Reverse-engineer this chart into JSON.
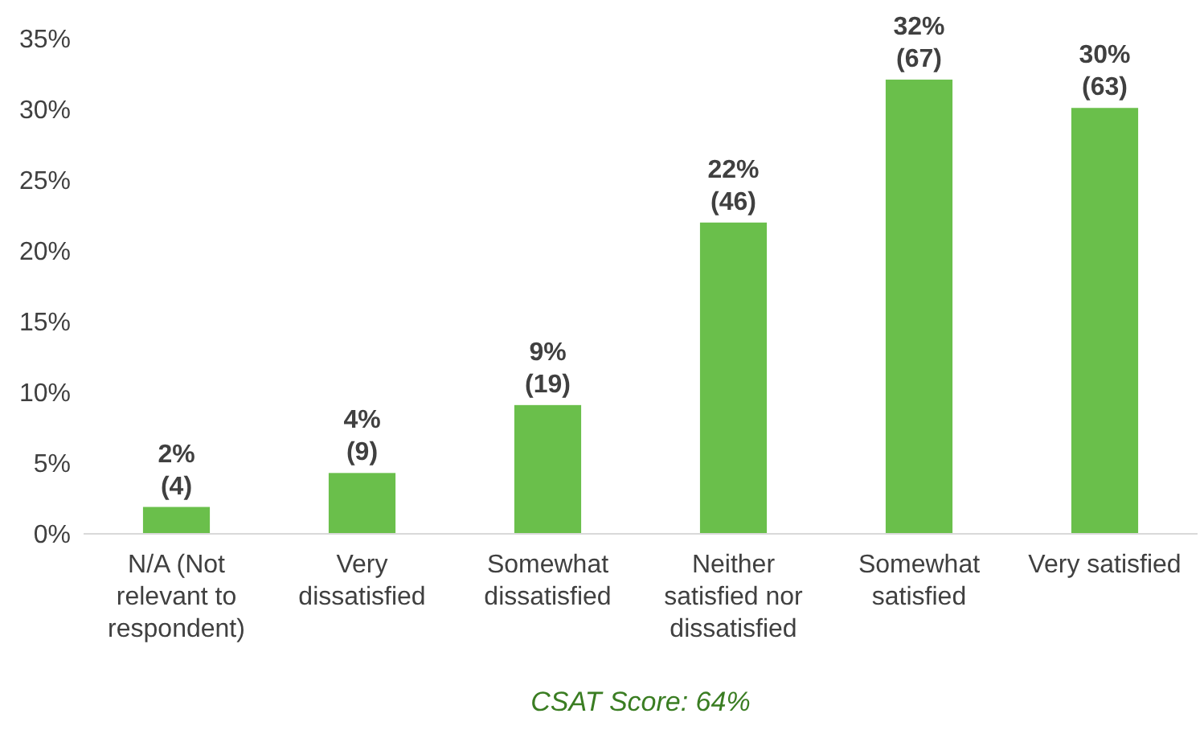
{
  "chart_data": {
    "type": "bar",
    "categories": [
      "N/A (Not relevant to respondent)",
      "Very dissatisfied",
      "Somewhat dissatisfied",
      "Neither satisfied nor dissatisfied",
      "Somewhat satisfied",
      "Very satisfied"
    ],
    "values": [
      1.9,
      4.3,
      9.1,
      22.0,
      32.1,
      30.1
    ],
    "value_labels": [
      "2% (4)",
      "4% (9)",
      "9% (19)",
      "22% (46)",
      "32% (67)",
      "30% (63)"
    ],
    "color": "#6abf4b",
    "ylim": [
      0,
      35
    ],
    "yticks": [
      {
        "value": 0,
        "label": "0%"
      },
      {
        "value": 5,
        "label": "5%"
      },
      {
        "value": 10,
        "label": "10%"
      },
      {
        "value": 15,
        "label": "15%"
      },
      {
        "value": 20,
        "label": "20%"
      },
      {
        "value": 25,
        "label": "25%"
      },
      {
        "value": 30,
        "label": "30%"
      },
      {
        "value": 35,
        "label": "35%"
      }
    ],
    "grid": false,
    "annotations": [
      "CSAT Score: 64%"
    ]
  }
}
